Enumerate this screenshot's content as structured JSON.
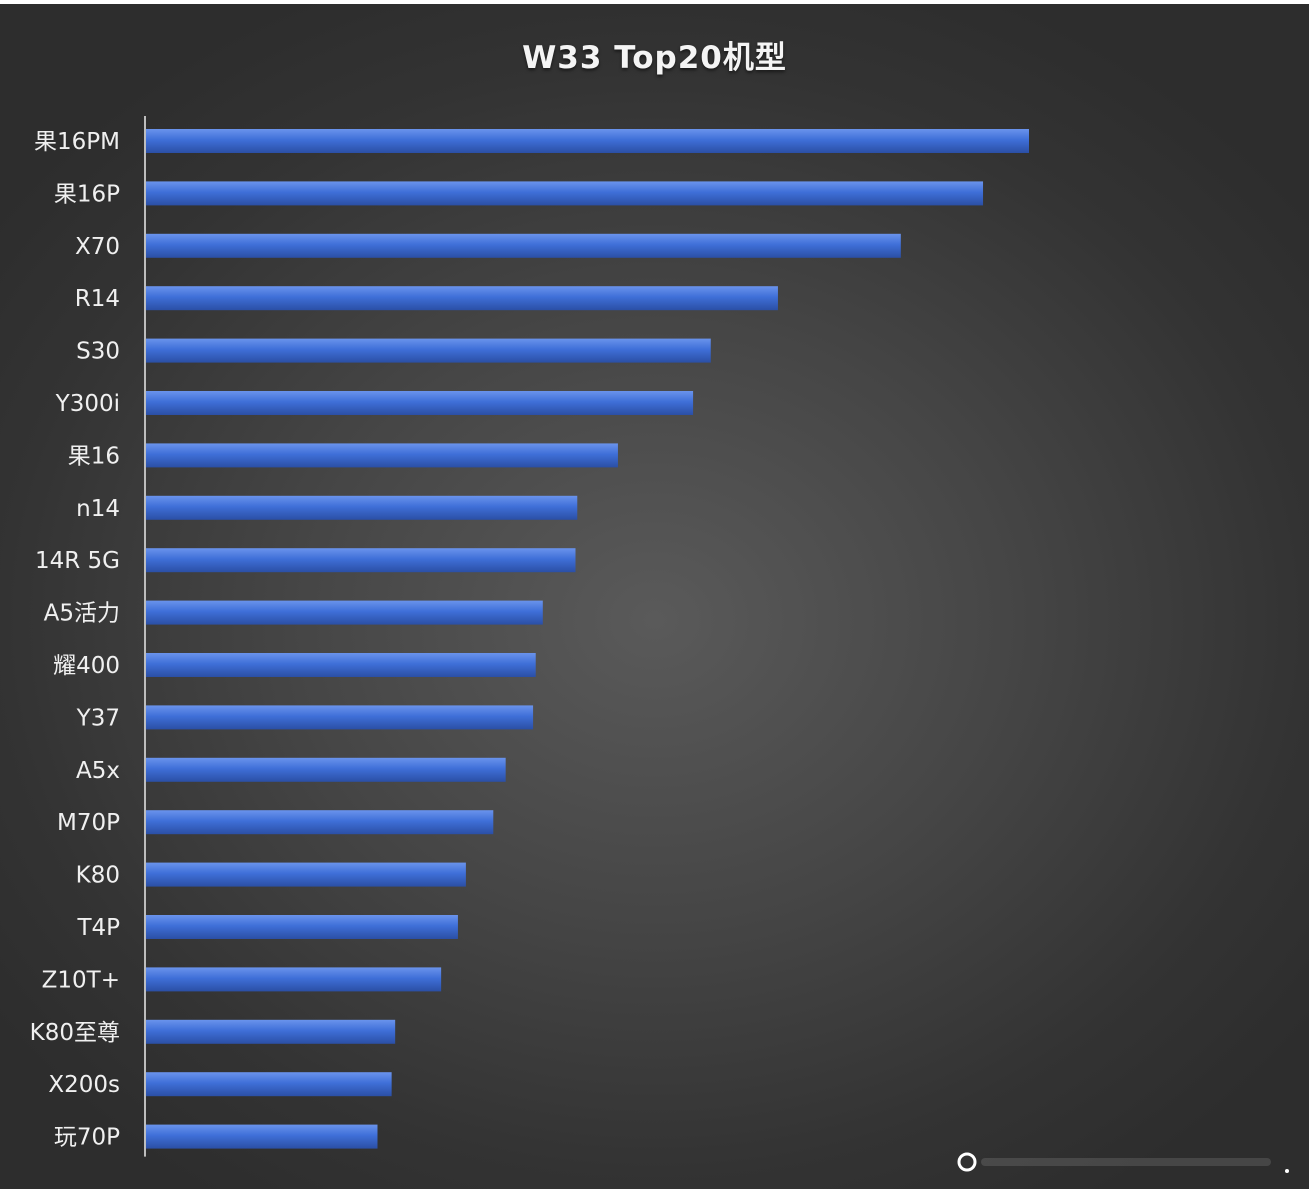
{
  "colors": {
    "bar": "#3f6fd8",
    "bar_highlight": "#6a93ec",
    "bar_shadow": "#2b4fa5",
    "axis": "#bdbdbd",
    "text": "#f0f0f0"
  },
  "chart_data": {
    "type": "bar",
    "orientation": "horizontal",
    "title": "W33 Top20机型",
    "xlabel": "",
    "ylabel": "",
    "grid": false,
    "legend": "none",
    "value_axis_visible": false,
    "xlim": [
      0,
      100
    ],
    "categories": [
      "果16PM",
      "果16P",
      "X70",
      "R14",
      "S30",
      "Y300i",
      "果16",
      "n14",
      "14R 5G",
      "A5活力",
      "耀400",
      "Y37",
      "A5x",
      "M70P",
      "K80",
      "T4P",
      "Z10T+",
      "K80至尊",
      "X200s",
      "玩70P"
    ],
    "values": [
      100,
      94.8,
      85.5,
      71.6,
      64.0,
      62.0,
      53.5,
      48.9,
      48.7,
      45.0,
      44.2,
      43.9,
      40.8,
      39.4,
      36.3,
      35.4,
      33.5,
      28.3,
      27.9,
      26.3
    ]
  }
}
